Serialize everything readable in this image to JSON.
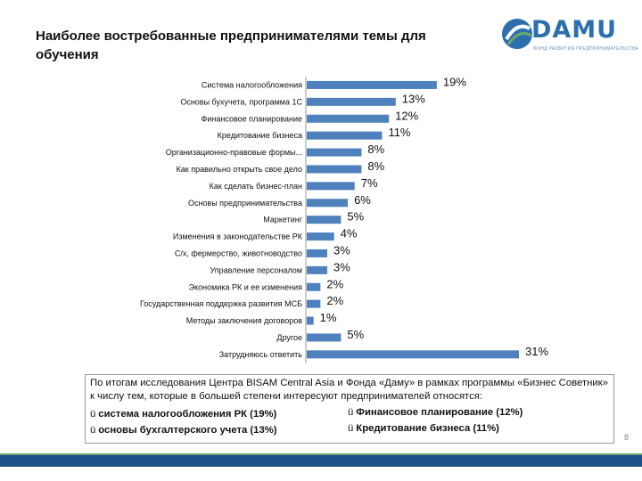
{
  "slide": {
    "title": "Наиболее востребованные предпринимателями темы для обучения",
    "page_number": "8"
  },
  "logo": {
    "name": "DAMU",
    "tagline": "ФОНД РАЗВИТИЯ ПРЕДПРИНИМАТЕЛЬСТВА"
  },
  "colors": {
    "bar": "#4f81bd",
    "band": "#1a4f8a",
    "accent": "#6ea86a"
  },
  "chart_data": {
    "type": "bar",
    "orientation": "horizontal",
    "title": "",
    "xlabel": "",
    "ylabel": "",
    "xlim": [
      0,
      31
    ],
    "categories": [
      "Система налогообложения",
      "Основы бухучета, программа 1С",
      "Финансовое планирование",
      "Кредитование бизнеса",
      "Организационно-правовые формы...",
      "Как правильно открыть свое дело",
      "Как сделать бизнес-план",
      "Основы предпринимательства",
      "Маркетинг",
      "Изменения в законодательстве РК",
      "С/х, фермерство, животноводство",
      "Управление персоналом",
      "Экономика РК и ее изменения",
      "Государственная поддержка развития МСБ",
      "Методы заключения договоров",
      "Другое",
      "Затрудняюсь ответить"
    ],
    "values": [
      19,
      13,
      12,
      11,
      8,
      8,
      7,
      6,
      5,
      4,
      3,
      3,
      2,
      2,
      1,
      5,
      31
    ],
    "value_labels": [
      "19%",
      "13%",
      "12%",
      "11%",
      "8%",
      "8%",
      "7%",
      "6%",
      "5%",
      "4%",
      "3%",
      "3%",
      "2%",
      "2%",
      "1%",
      "5%",
      "31%"
    ]
  },
  "info": {
    "text": "По итогам исследования Центра BISAM Central Asia и Фонда «Даму» в рамках программы «Бизнес Советник» к числу тем, которые в большей степени интересуют предпринимателей относятся:",
    "check": "ü",
    "bullets": [
      "система налогообложения РК (19%)",
      "основы бухгалтерского учета (13%)",
      "Финансовое планирование (12%)",
      "Кредитование бизнеса (11%)"
    ]
  }
}
